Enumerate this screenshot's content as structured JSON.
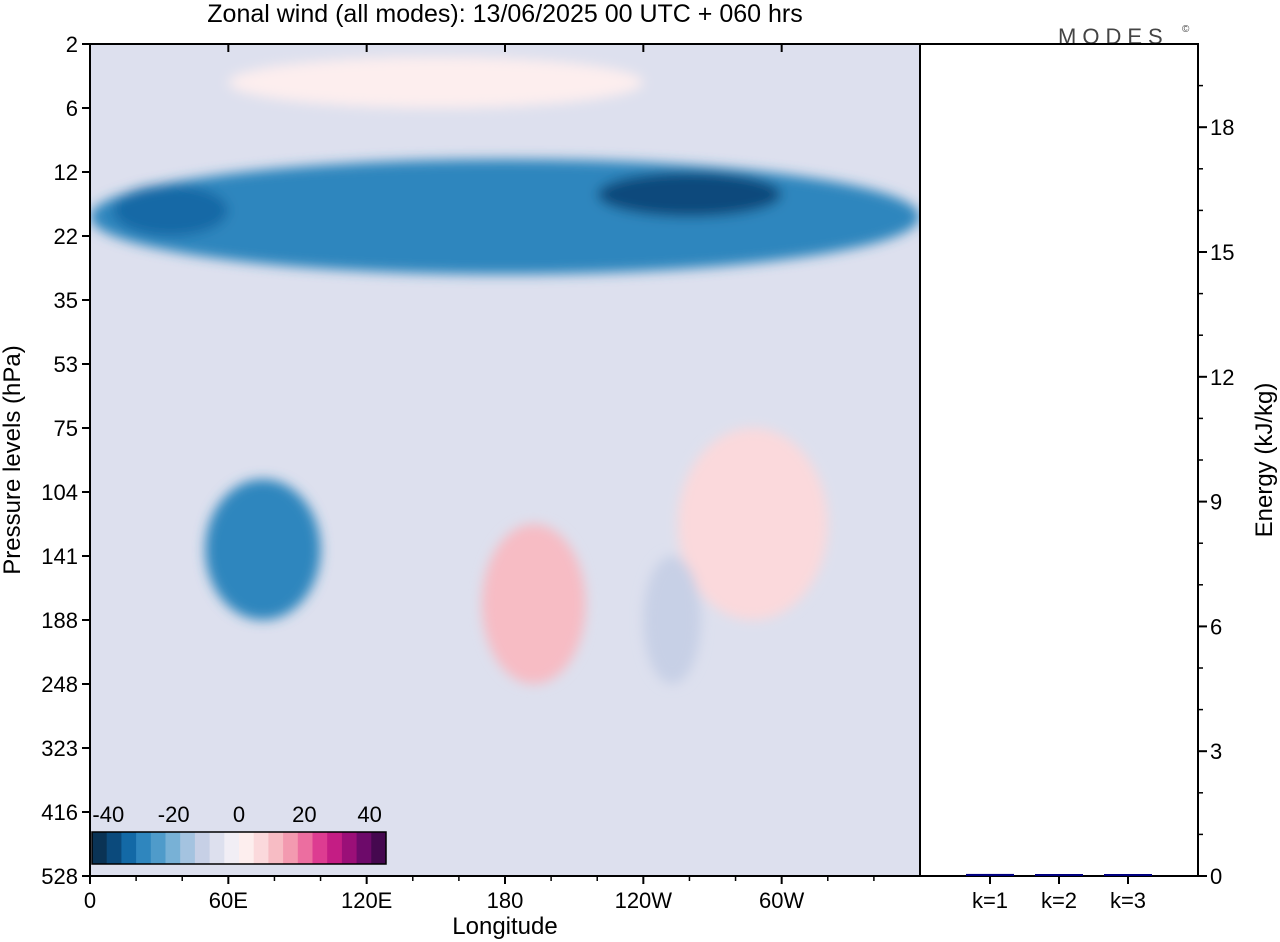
{
  "chart_data": [
    {
      "type": "heatmap",
      "title": "Zonal wind (all modes):  13/06/2025  00 UTC  + 060 hrs",
      "xlabel": "Longitude",
      "ylabel": "Pressure levels (hPa)",
      "x_ticks": [
        "0",
        "60E",
        "120E",
        "180",
        "120W",
        "60W"
      ],
      "x_tick_values": [
        0,
        60,
        120,
        180,
        240,
        300
      ],
      "xlim": [
        0,
        360
      ],
      "y_ticks": [
        "2",
        "6",
        "12",
        "22",
        "35",
        "53",
        "75",
        "104",
        "141",
        "188",
        "248",
        "323",
        "416",
        "528"
      ],
      "y_scale": "pressure levels, evenly spaced, 2 hPa at top",
      "colorbar": {
        "tick_labels": [
          "-40",
          "-20",
          "0",
          "20",
          "40"
        ],
        "tick_values": [
          -40,
          -20,
          0,
          20,
          40
        ],
        "range": [
          -45,
          45
        ],
        "step": 5,
        "colors": [
          "#0a3355",
          "#0b4a7c",
          "#1369a6",
          "#2f86be",
          "#4f9bca",
          "#78b1d6",
          "#a4c3e0",
          "#c7d0e6",
          "#dde0ee",
          "#f1eef5",
          "#fdeeee",
          "#fbd9dc",
          "#f7bcc4",
          "#f39ab0",
          "#ec6ea0",
          "#dd3c91",
          "#c41d84",
          "#9b0f78",
          "#6d0a6a",
          "#45084f"
        ]
      },
      "regions": [
        {
          "label": "easterly jet",
          "lon": [
            0,
            360
          ],
          "level_index": [
            1.8,
            3.6
          ],
          "value": -28
        },
        {
          "label": "easterly core",
          "lon": [
            220,
            300
          ],
          "level_index": [
            2.0,
            2.7
          ],
          "value": -38
        },
        {
          "label": "easterly core",
          "lon": [
            10,
            60
          ],
          "level_index": [
            2.2,
            3.0
          ],
          "value": -32
        },
        {
          "label": "stratospheric westerly",
          "lon": [
            60,
            240
          ],
          "level_index": [
            0.2,
            1.0
          ],
          "value": 8
        },
        {
          "label": "tropospheric easterly",
          "lon": [
            50,
            100
          ],
          "level_index": [
            6.8,
            9.0
          ],
          "value": -30
        },
        {
          "label": "tropospheric westerly",
          "lon": [
            170,
            215
          ],
          "level_index": [
            7.5,
            10.0
          ],
          "value": 15
        },
        {
          "label": "tropospheric westerly",
          "lon": [
            255,
            320
          ],
          "level_index": [
            6.0,
            9.0
          ],
          "value": 10
        },
        {
          "label": "weak easterly",
          "lon": [
            240,
            265
          ],
          "level_index": [
            8.0,
            10.0
          ],
          "value": -8
        }
      ]
    },
    {
      "type": "bar",
      "categories": [
        "k=1",
        "k=2",
        "k=3"
      ],
      "values": [
        0.05,
        0.03,
        0.01
      ],
      "ylabel": "Energy (kJ/kg)",
      "y_ticks": [
        "0",
        "3",
        "6",
        "9",
        "12",
        "15",
        "18"
      ],
      "ylim": [
        0,
        20
      ],
      "bar_color": "#000080"
    }
  ],
  "logo": {
    "text": "MODES",
    "mark": "©"
  }
}
